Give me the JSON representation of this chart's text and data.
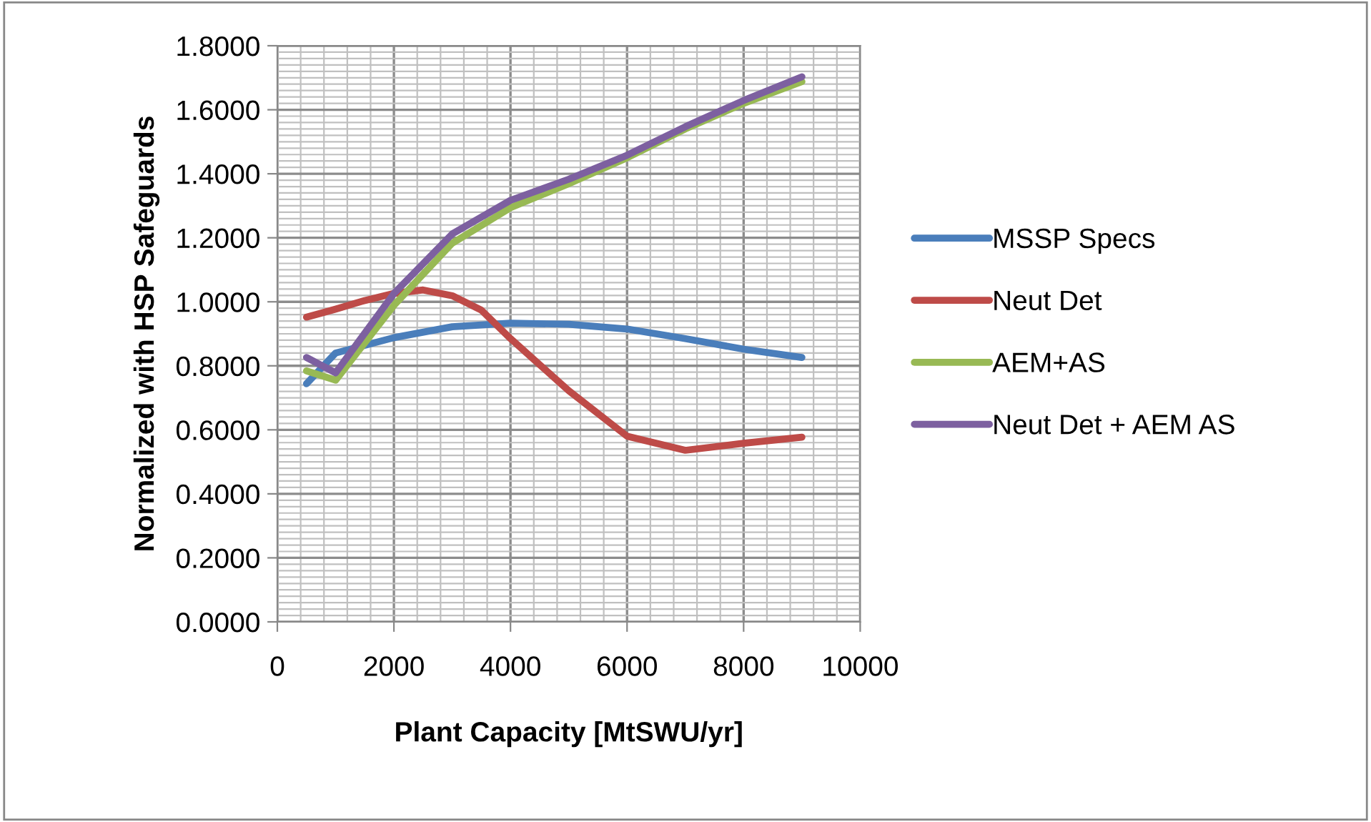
{
  "chart_data": {
    "type": "line",
    "xlabel": "Plant Capacity [MtSWU/yr]",
    "ylabel": "Normalized with HSP Safeguards",
    "xlim": [
      0,
      10000
    ],
    "xticks": [
      0,
      2000,
      4000,
      6000,
      8000,
      10000
    ],
    "ylim": [
      0,
      1.8
    ],
    "yticks": [
      {
        "value": 0,
        "label": "0.0000"
      },
      {
        "value": 0.2,
        "label": "0.2000"
      },
      {
        "value": 0.4,
        "label": "0.4000"
      },
      {
        "value": 0.6,
        "label": "0.6000"
      },
      {
        "value": 0.8,
        "label": "0.8000"
      },
      {
        "value": 1.0,
        "label": "1.0000"
      },
      {
        "value": 1.2,
        "label": "1.2000"
      },
      {
        "value": 1.4,
        "label": "1.4000"
      },
      {
        "value": 1.6,
        "label": "1.6000"
      },
      {
        "value": 1.8,
        "label": "1.8000"
      }
    ],
    "grid": true,
    "legend": "right",
    "marker": "none",
    "line_style": "solid",
    "series": [
      {
        "name": "MSSP Specs",
        "color": "#4a7ebb",
        "x": [
          500,
          1000,
          2000,
          3000,
          4000,
          5000,
          6000,
          7000,
          8000,
          9000
        ],
        "values": [
          0.744,
          0.84,
          0.888,
          0.922,
          0.933,
          0.93,
          0.915,
          0.885,
          0.852,
          0.826
        ]
      },
      {
        "name": "Neut Det",
        "color": "#be4b48",
        "x": [
          500,
          1000,
          1500,
          2000,
          2500,
          3000,
          3500,
          4000,
          5000,
          6000,
          7000,
          8000,
          9000
        ],
        "values": [
          0.952,
          0.977,
          1.004,
          1.026,
          1.037,
          1.019,
          0.974,
          0.885,
          0.722,
          0.58,
          0.536,
          0.558,
          0.577
        ]
      },
      {
        "name": "AEM+AS",
        "color": "#98b954",
        "x": [
          500,
          1000,
          2000,
          3000,
          4000,
          5000,
          6000,
          7000,
          8000,
          9000
        ],
        "values": [
          0.784,
          0.755,
          0.989,
          1.183,
          1.294,
          1.369,
          1.45,
          1.54,
          1.62,
          1.688
        ]
      },
      {
        "name": "Neut Det + AEM AS",
        "color": "#7d60a0",
        "x": [
          500,
          1000,
          2000,
          3000,
          4000,
          5000,
          6000,
          7000,
          8000,
          9000
        ],
        "values": [
          0.826,
          0.778,
          1.026,
          1.212,
          1.317,
          1.383,
          1.458,
          1.547,
          1.629,
          1.703
        ]
      }
    ]
  }
}
